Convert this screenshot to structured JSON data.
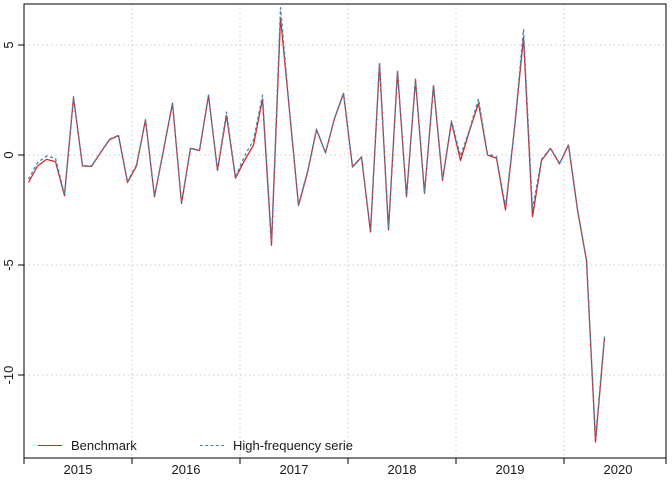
{
  "chart_data": {
    "type": "line",
    "title": "",
    "xlabel": "",
    "ylabel": "",
    "frequency": "monthly",
    "x_start": "2015-01",
    "x_end": "2020-05",
    "grid": true,
    "grid_style": "dotted-light-gray",
    "legend_position": "bottom-left-inside",
    "x_tick_labels": [
      "2015",
      "2016",
      "2017",
      "2018",
      "2019",
      "2020"
    ],
    "y_tick_values": [
      5,
      0,
      -5,
      -10
    ],
    "y_tick_labels": [
      "5",
      "0",
      "-5",
      "-10"
    ],
    "ylim": [
      -13.77,
      6.86
    ],
    "categories": [
      "2015-01",
      "2015-02",
      "2015-03",
      "2015-04",
      "2015-05",
      "2015-06",
      "2015-07",
      "2015-08",
      "2015-09",
      "2015-10",
      "2015-11",
      "2015-12",
      "2016-01",
      "2016-02",
      "2016-03",
      "2016-04",
      "2016-05",
      "2016-06",
      "2016-07",
      "2016-08",
      "2016-09",
      "2016-10",
      "2016-11",
      "2016-12",
      "2017-01",
      "2017-02",
      "2017-03",
      "2017-04",
      "2017-05",
      "2017-06",
      "2017-07",
      "2017-08",
      "2017-09",
      "2017-10",
      "2017-11",
      "2017-12",
      "2018-01",
      "2018-02",
      "2018-03",
      "2018-04",
      "2018-05",
      "2018-06",
      "2018-07",
      "2018-08",
      "2018-09",
      "2018-10",
      "2018-11",
      "2018-12",
      "2019-01",
      "2019-02",
      "2019-03",
      "2019-04",
      "2019-05",
      "2019-06",
      "2019-07",
      "2019-08",
      "2019-09",
      "2019-10",
      "2019-11",
      "2019-12",
      "2020-01",
      "2020-02",
      "2020-03",
      "2020-04",
      "2020-05"
    ],
    "series": [
      {
        "name": "Benchmark",
        "color": "#CC2B2B",
        "line_style": "solid",
        "values": [
          -1.25,
          -0.5,
          -0.2,
          -0.3,
          -1.85,
          2.6,
          -0.5,
          -0.52,
          0.1,
          0.7,
          0.88,
          -1.25,
          -0.5,
          1.6,
          -1.9,
          0.22,
          2.35,
          -2.2,
          0.3,
          0.2,
          2.7,
          -0.7,
          1.8,
          -1.05,
          -0.25,
          0.45,
          2.55,
          -4.1,
          6.25,
          2.0,
          -2.3,
          -0.8,
          1.15,
          0.1,
          1.65,
          2.8,
          -0.55,
          -0.1,
          -3.5,
          4.15,
          -3.4,
          3.8,
          -1.9,
          3.4,
          -1.75,
          3.15,
          -1.15,
          1.5,
          -0.25,
          1.1,
          2.35,
          0.0,
          -0.15,
          -2.5,
          1.2,
          5.35,
          -2.8,
          -0.25,
          0.3,
          -0.4,
          0.45,
          -2.5,
          -4.8,
          -13.05,
          -8.3
        ]
      },
      {
        "name": "High-frequency serie",
        "color": "#4682B4",
        "line_style": "dashed",
        "values": [
          -1.1,
          -0.35,
          -0.05,
          -0.15,
          -1.8,
          2.65,
          -0.48,
          -0.5,
          0.12,
          0.72,
          0.9,
          -1.2,
          -0.45,
          1.62,
          -1.88,
          0.25,
          2.38,
          -2.18,
          0.32,
          0.22,
          2.72,
          -0.68,
          1.95,
          -1.0,
          -0.05,
          0.68,
          2.72,
          -3.9,
          6.7,
          2.05,
          -2.25,
          -0.75,
          1.18,
          0.12,
          1.68,
          2.82,
          -0.52,
          -0.08,
          -3.45,
          4.2,
          -3.35,
          3.85,
          -1.85,
          3.45,
          -1.7,
          3.2,
          -1.1,
          1.55,
          -0.05,
          1.15,
          2.55,
          0.05,
          -0.08,
          -2.35,
          1.25,
          5.7,
          -2.45,
          -0.2,
          0.32,
          -0.38,
          0.48,
          -2.45,
          -4.75,
          -12.85,
          -8.25
        ]
      }
    ]
  },
  "legend": {
    "items": [
      {
        "label": "Benchmark",
        "swatch": "red-solid-line"
      },
      {
        "label": "High-frequency serie",
        "swatch": "blue-dashed-line"
      }
    ]
  },
  "colors": {
    "benchmark_line": "#CC2B2B",
    "high_frequency_line": "#4682B4",
    "gridline": "#c9c9c9",
    "axis": "#000000",
    "text": "#1a1a1a",
    "background": "#ffffff"
  }
}
